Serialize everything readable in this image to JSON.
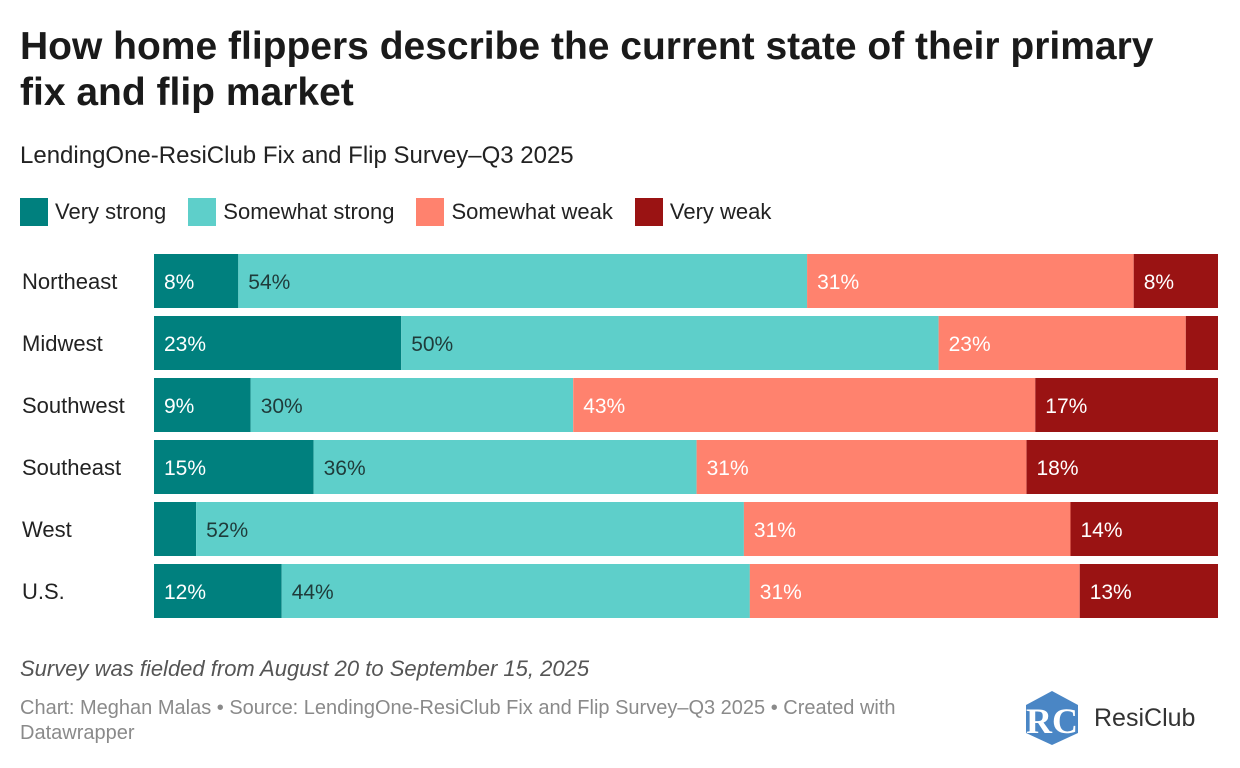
{
  "title": "How home flippers describe the current state of their primary fix and flip market",
  "subtitle": "LendingOne-ResiClub Fix and Flip Survey–Q3 2025",
  "legend": [
    {
      "label": "Very strong",
      "color": "#00807e"
    },
    {
      "label": "Somewhat strong",
      "color": "#5ecfca"
    },
    {
      "label": "Somewhat weak",
      "color": "#ff826e"
    },
    {
      "label": "Very weak",
      "color": "#9a1313"
    }
  ],
  "chart_data": {
    "type": "bar",
    "orientation": "horizontal",
    "stacked": true,
    "title": "How home flippers describe the current state of their primary fix and flip market",
    "subtitle": "LendingOne-ResiClub Fix and Flip Survey–Q3 2025",
    "categories": [
      "Northeast",
      "Midwest",
      "Southwest",
      "Southeast",
      "West",
      "U.S."
    ],
    "series": [
      {
        "name": "Very strong",
        "color": "#00807e",
        "values": [
          8,
          23,
          9,
          15,
          4,
          12
        ],
        "labels": [
          "8%",
          "23%",
          "9%",
          "15%",
          "",
          "12%"
        ]
      },
      {
        "name": "Somewhat strong",
        "color": "#5ecfca",
        "values": [
          54,
          50,
          30,
          36,
          52,
          44
        ],
        "labels": [
          "54%",
          "50%",
          "30%",
          "36%",
          "52%",
          "44%"
        ]
      },
      {
        "name": "Somewhat weak",
        "color": "#ff826e",
        "values": [
          31,
          23,
          43,
          31,
          31,
          31
        ],
        "labels": [
          "31%",
          "23%",
          "43%",
          "31%",
          "31%",
          "31%"
        ]
      },
      {
        "name": "Very weak",
        "color": "#9a1313",
        "values": [
          8,
          3,
          17,
          18,
          14,
          13
        ],
        "labels": [
          "8%",
          "",
          "17%",
          "18%",
          "14%",
          "13%"
        ]
      }
    ],
    "xlim": [
      0,
      100
    ],
    "legend_position": "top-left"
  },
  "footer": {
    "note": "Survey was fielded from August 20 to September 15, 2025",
    "credit": "Chart: Meghan Malas • Source: LendingOne-ResiClub Fix and Flip Survey–Q3 2025 • Created with Datawrapper"
  },
  "logo": {
    "text": "ResiClub",
    "mark": "RC"
  }
}
